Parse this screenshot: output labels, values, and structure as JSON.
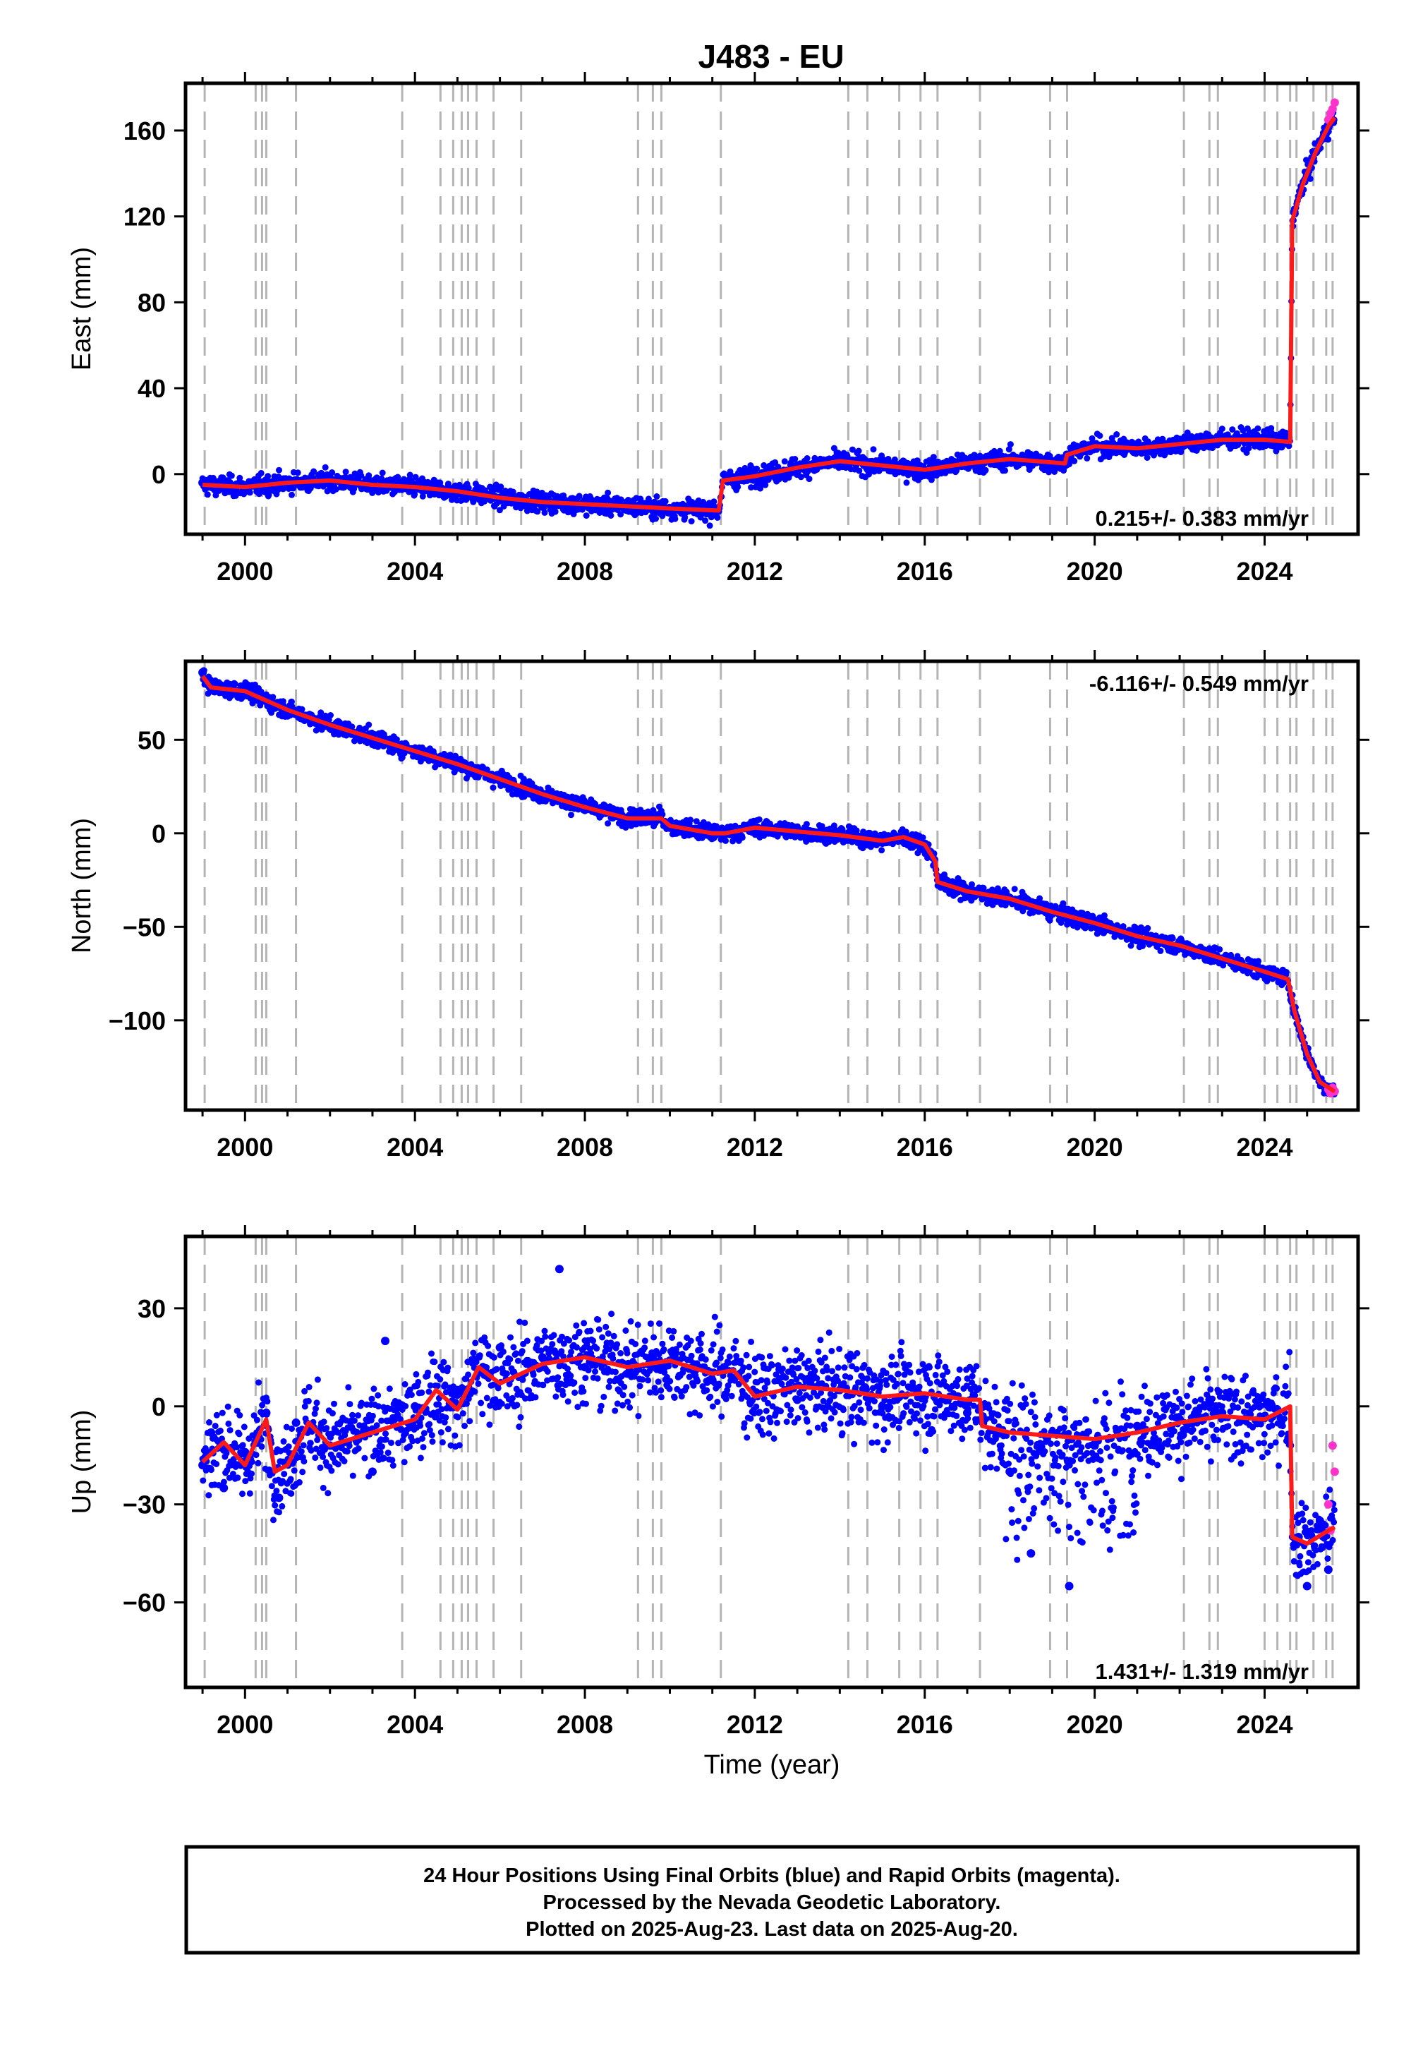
{
  "chart_data": {
    "type": "scatter",
    "title": "J483 - EU",
    "x_axis": {
      "label": "Time (year)",
      "range": [
        1998.6,
        2026.2
      ],
      "major_ticks": [
        2000,
        2004,
        2008,
        2012,
        2016,
        2020,
        2024
      ],
      "tick_labels": [
        "2000",
        "2004",
        "2008",
        "2012",
        "2016",
        "2020",
        "2024"
      ]
    },
    "event_lines_years": [
      1999.05,
      2000.25,
      2000.4,
      2000.5,
      2001.2,
      2003.7,
      2004.6,
      2004.9,
      2005.1,
      2005.25,
      2005.45,
      2005.85,
      2006.5,
      2009.25,
      2009.6,
      2009.8,
      2011.2,
      2014.2,
      2014.65,
      2015.4,
      2015.9,
      2016.3,
      2017.3,
      2018.95,
      2019.35,
      2022.1,
      2022.7,
      2022.9,
      2024.0,
      2024.3,
      2024.6,
      2024.75,
      2025.15,
      2025.45,
      2025.6
    ],
    "series_colors": {
      "final": "#0000ff",
      "rapid": "#ff33cc",
      "model": "#ff1a1a",
      "event": "#b4b4b4"
    },
    "panels": [
      {
        "name": "east",
        "ylabel": "East (mm)",
        "ylim": [
          -28,
          182
        ],
        "yticks": [
          0,
          40,
          80,
          120,
          160
        ],
        "ytick_labels": [
          "0",
          "40",
          "80",
          "120",
          "160"
        ],
        "rate_text": "0.215+/- 0.383 mm/yr",
        "rate_position": "bottom-right",
        "model_line": [
          [
            1999.0,
            -5
          ],
          [
            2000.0,
            -6
          ],
          [
            2001.0,
            -4
          ],
          [
            2002.0,
            -3
          ],
          [
            2003.0,
            -5
          ],
          [
            2004.0,
            -6
          ],
          [
            2005.0,
            -8
          ],
          [
            2006.0,
            -11
          ],
          [
            2007.0,
            -13
          ],
          [
            2008.0,
            -14
          ],
          [
            2009.0,
            -15
          ],
          [
            2010.0,
            -16
          ],
          [
            2011.15,
            -17
          ],
          [
            2011.25,
            -3
          ],
          [
            2012.0,
            -1
          ],
          [
            2013.0,
            3
          ],
          [
            2014.0,
            6
          ],
          [
            2015.0,
            4
          ],
          [
            2016.0,
            2
          ],
          [
            2017.0,
            5
          ],
          [
            2018.0,
            7
          ],
          [
            2019.3,
            5
          ],
          [
            2019.35,
            9
          ],
          [
            2020.0,
            13
          ],
          [
            2021.0,
            12
          ],
          [
            2022.0,
            14
          ],
          [
            2023.0,
            16
          ],
          [
            2024.0,
            16
          ],
          [
            2024.6,
            15
          ],
          [
            2024.65,
            118
          ],
          [
            2024.9,
            135
          ],
          [
            2025.2,
            150
          ],
          [
            2025.5,
            162
          ],
          [
            2025.65,
            166
          ]
        ],
        "final_points": [
          [
            1999.0,
            -4
          ],
          [
            1999.5,
            -6
          ],
          [
            2000.0,
            -7
          ],
          [
            2000.5,
            -3
          ],
          [
            2001.0,
            -5
          ],
          [
            2002.0,
            -2
          ],
          [
            2003.0,
            -4
          ],
          [
            2004.0,
            -6
          ],
          [
            2005.0,
            -9
          ],
          [
            2006.0,
            -11
          ],
          [
            2007.0,
            -13
          ],
          [
            2008.0,
            -14
          ],
          [
            2009.0,
            -16
          ],
          [
            2010.0,
            -17
          ],
          [
            2011.0,
            -18
          ],
          [
            2011.5,
            -2
          ],
          [
            2012.0,
            0
          ],
          [
            2013.0,
            4
          ],
          [
            2014.0,
            6
          ],
          [
            2015.0,
            4
          ],
          [
            2016.0,
            2
          ],
          [
            2017.0,
            5
          ],
          [
            2018.0,
            7
          ],
          [
            2019.0,
            6
          ],
          [
            2020.0,
            12
          ],
          [
            2021.0,
            13
          ],
          [
            2022.0,
            14
          ],
          [
            2023.0,
            16
          ],
          [
            2024.0,
            17
          ],
          [
            2024.5,
            15
          ],
          [
            2024.7,
            122
          ],
          [
            2025.0,
            140
          ],
          [
            2025.3,
            155
          ],
          [
            2025.5,
            162
          ]
        ],
        "rapid_points": [
          [
            2025.5,
            165
          ],
          [
            2025.55,
            168
          ],
          [
            2025.6,
            170
          ],
          [
            2025.65,
            173
          ]
        ]
      },
      {
        "name": "north",
        "ylabel": "North (mm)",
        "ylim": [
          -148,
          92
        ],
        "yticks": [
          -100,
          -50,
          0,
          50
        ],
        "ytick_labels": [
          "−100",
          "−50",
          "0",
          "50"
        ],
        "rate_text": "-6.116+/- 0.549 mm/yr",
        "rate_position": "top-right",
        "model_line": [
          [
            1999.0,
            84
          ],
          [
            1999.2,
            78
          ],
          [
            2000.0,
            76
          ],
          [
            2001.0,
            66
          ],
          [
            2002.0,
            58
          ],
          [
            2003.0,
            51
          ],
          [
            2004.0,
            44
          ],
          [
            2005.0,
            37
          ],
          [
            2006.0,
            29
          ],
          [
            2007.0,
            21
          ],
          [
            2008.0,
            14
          ],
          [
            2009.0,
            8
          ],
          [
            2009.8,
            8
          ],
          [
            2010.0,
            4
          ],
          [
            2011.0,
            0
          ],
          [
            2011.3,
            0
          ],
          [
            2012.0,
            3
          ],
          [
            2013.0,
            1
          ],
          [
            2014.0,
            -1
          ],
          [
            2015.0,
            -4
          ],
          [
            2015.5,
            -2
          ],
          [
            2016.0,
            -6
          ],
          [
            2016.25,
            -15
          ],
          [
            2016.3,
            -26
          ],
          [
            2017.0,
            -31
          ],
          [
            2018.0,
            -35
          ],
          [
            2019.0,
            -42
          ],
          [
            2020.0,
            -48
          ],
          [
            2021.0,
            -55
          ],
          [
            2022.0,
            -60
          ],
          [
            2023.0,
            -67
          ],
          [
            2024.0,
            -74
          ],
          [
            2024.55,
            -78
          ],
          [
            2024.7,
            -95
          ],
          [
            2025.0,
            -118
          ],
          [
            2025.3,
            -133
          ],
          [
            2025.65,
            -138
          ]
        ],
        "final_points": [
          [
            1999.0,
            86
          ],
          [
            2000.0,
            76
          ],
          [
            2001.0,
            65
          ],
          [
            2002.0,
            57
          ],
          [
            2003.0,
            50
          ],
          [
            2004.0,
            43
          ],
          [
            2005.0,
            36
          ],
          [
            2006.0,
            28
          ],
          [
            2007.0,
            20
          ],
          [
            2008.0,
            13
          ],
          [
            2009.0,
            7
          ],
          [
            2010.0,
            3
          ],
          [
            2011.0,
            -1
          ],
          [
            2012.0,
            3
          ],
          [
            2013.0,
            1
          ],
          [
            2014.0,
            -2
          ],
          [
            2015.0,
            -5
          ],
          [
            2016.0,
            -7
          ],
          [
            2016.5,
            -28
          ],
          [
            2017.0,
            -30
          ],
          [
            2018.0,
            -36
          ],
          [
            2019.0,
            -42
          ],
          [
            2020.0,
            -49
          ],
          [
            2021.0,
            -55
          ],
          [
            2022.0,
            -61
          ],
          [
            2023.0,
            -67
          ],
          [
            2024.0,
            -74
          ],
          [
            2024.7,
            -96
          ],
          [
            2025.0,
            -118
          ],
          [
            2025.4,
            -135
          ]
        ],
        "rapid_points": [
          [
            2025.5,
            -137
          ],
          [
            2025.55,
            -139
          ],
          [
            2025.6,
            -136
          ],
          [
            2025.65,
            -138
          ]
        ]
      },
      {
        "name": "up",
        "ylabel": "Up (mm)",
        "ylim": [
          -86,
          52
        ],
        "yticks": [
          -60,
          -30,
          0,
          30
        ],
        "ytick_labels": [
          "−60",
          "−30",
          "0",
          "30"
        ],
        "rate_text": "1.431+/- 1.319 mm/yr",
        "rate_position": "bottom-right",
        "model_line": [
          [
            1999.0,
            -17
          ],
          [
            1999.5,
            -11
          ],
          [
            2000.0,
            -18
          ],
          [
            2000.5,
            -4
          ],
          [
            2000.7,
            -20
          ],
          [
            2001.0,
            -18
          ],
          [
            2001.5,
            -5
          ],
          [
            2002.0,
            -12
          ],
          [
            2003.0,
            -8
          ],
          [
            2004.0,
            -4
          ],
          [
            2004.5,
            5
          ],
          [
            2005.0,
            -1
          ],
          [
            2005.5,
            12
          ],
          [
            2006.0,
            7
          ],
          [
            2007.0,
            13
          ],
          [
            2008.0,
            15
          ],
          [
            2009.0,
            12
          ],
          [
            2010.0,
            14
          ],
          [
            2011.0,
            10
          ],
          [
            2011.5,
            11
          ],
          [
            2012.0,
            3
          ],
          [
            2013.0,
            6
          ],
          [
            2014.0,
            5
          ],
          [
            2015.0,
            3
          ],
          [
            2016.0,
            4
          ],
          [
            2017.0,
            2
          ],
          [
            2017.3,
            2
          ],
          [
            2017.35,
            -6
          ],
          [
            2018.0,
            -8
          ],
          [
            2019.0,
            -9
          ],
          [
            2020.0,
            -10
          ],
          [
            2021.0,
            -8
          ],
          [
            2022.0,
            -5
          ],
          [
            2023.0,
            -3
          ],
          [
            2024.0,
            -4
          ],
          [
            2024.6,
            0
          ],
          [
            2024.65,
            -40
          ],
          [
            2025.0,
            -42
          ],
          [
            2025.5,
            -38
          ],
          [
            2025.65,
            -37
          ]
        ],
        "final_points": [
          [
            1999.0,
            -18
          ],
          [
            1999.2,
            -8
          ],
          [
            1999.5,
            -25
          ],
          [
            2000.0,
            -14
          ],
          [
            2000.5,
            -2
          ],
          [
            2000.8,
            -28
          ],
          [
            2001.2,
            -5
          ],
          [
            2002.0,
            -12
          ],
          [
            2003.0,
            -20
          ],
          [
            2003.3,
            20
          ],
          [
            2004.0,
            0
          ],
          [
            2005.0,
            5
          ],
          [
            2005.6,
            12
          ],
          [
            2006.0,
            18
          ],
          [
            2007.0,
            15
          ],
          [
            2007.4,
            42
          ],
          [
            2008.0,
            12
          ],
          [
            2009.0,
            10
          ],
          [
            2010.0,
            14
          ],
          [
            2011.0,
            8
          ],
          [
            2012.0,
            4
          ],
          [
            2013.0,
            2
          ],
          [
            2014.0,
            5
          ],
          [
            2015.0,
            0
          ],
          [
            2016.0,
            3
          ],
          [
            2017.0,
            -2
          ],
          [
            2018.0,
            -20
          ],
          [
            2018.5,
            -45
          ],
          [
            2019.0,
            -8
          ],
          [
            2019.4,
            -55
          ],
          [
            2020.0,
            -12
          ],
          [
            2021.0,
            -6
          ],
          [
            2022.0,
            -4
          ],
          [
            2023.0,
            -2
          ],
          [
            2024.0,
            -3
          ],
          [
            2024.8,
            -40
          ],
          [
            2025.0,
            -55
          ],
          [
            2025.3,
            -35
          ],
          [
            2025.5,
            -50
          ]
        ],
        "rapid_points": [
          [
            2025.5,
            -30
          ],
          [
            2025.55,
            -38
          ],
          [
            2025.6,
            -12
          ],
          [
            2025.65,
            -20
          ]
        ]
      }
    ]
  },
  "footer": {
    "line1": "24 Hour Positions Using Final Orbits (blue) and Rapid Orbits (magenta).",
    "line2": "Processed by the Nevada Geodetic Laboratory.",
    "line3": "Plotted on 2025-Aug-23. Last data on 2025-Aug-20."
  }
}
